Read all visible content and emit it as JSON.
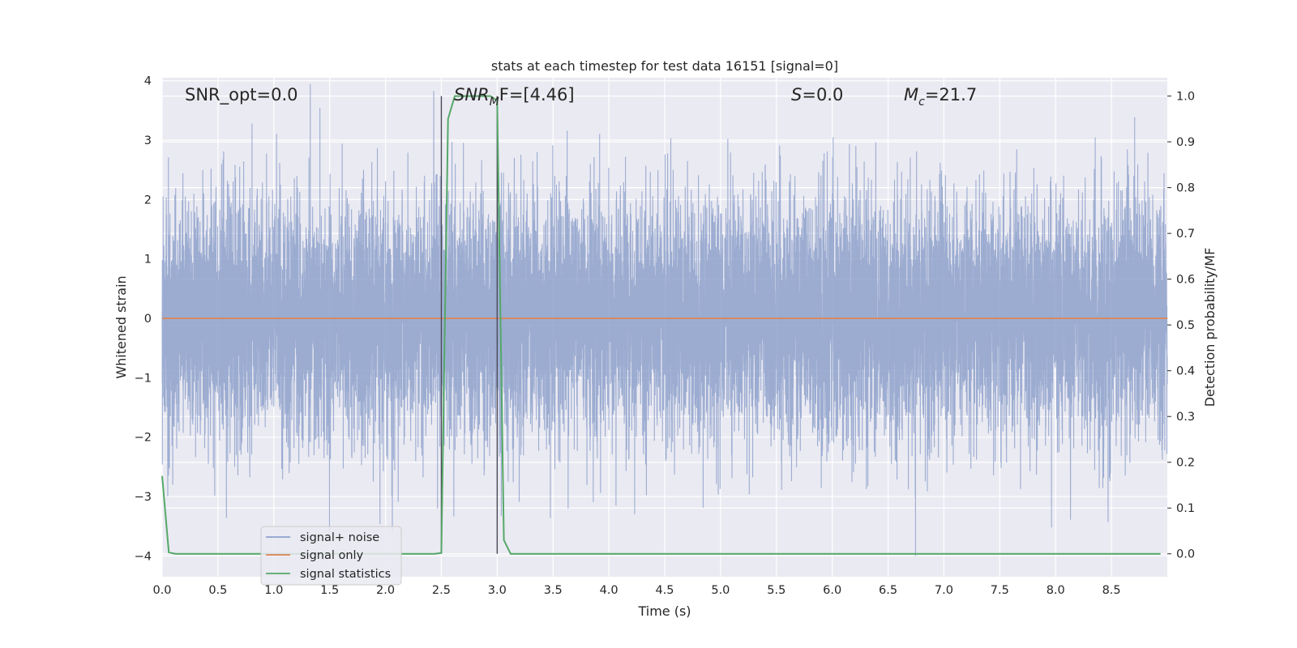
{
  "chart_data": {
    "type": "line",
    "title": "stats at each timestep for test data 16151 [signal=0]",
    "xlabel": "Time (s)",
    "ylabel_left": "Whitened strain",
    "ylabel_right": "Detection probability/MF",
    "xlim": [
      0,
      9.0
    ],
    "ylim_left": [
      -4.35,
      4.05
    ],
    "ylim_right": [
      -0.05,
      1.04
    ],
    "x_ticks": [
      "0.0",
      "0.5",
      "1.0",
      "1.5",
      "2.0",
      "2.5",
      "3.0",
      "3.5",
      "4.0",
      "4.5",
      "5.0",
      "5.5",
      "6.0",
      "6.5",
      "7.0",
      "7.5",
      "8.0",
      "8.5"
    ],
    "y_ticks_left": [
      "4",
      "3",
      "2",
      "1",
      "0",
      "−1",
      "−2",
      "−3",
      "−4"
    ],
    "y_ticks_right": [
      "1.0",
      "0.9",
      "0.8",
      "0.7",
      "0.6",
      "0.5",
      "0.4",
      "0.3",
      "0.2",
      "0.1",
      "0.0"
    ],
    "grid": true,
    "legend_position": "lower-left",
    "annotations": {
      "snr_opt": "SNR_opt=0.0",
      "snr_mf_sym": "SNR",
      "snr_mf_sub": "M",
      "snr_mf_rest": "F=[4.46]",
      "s_sym": "S",
      "s_rest": "=0.0",
      "mc_sym": "M",
      "mc_sub": "c",
      "mc_rest": "=21.7"
    },
    "vertical_lines": [
      2.5,
      3.0
    ],
    "series": [
      {
        "name": "signal+ noise",
        "color": "#8ea1cb",
        "axis": "left",
        "kind": "noise",
        "sample_rate": 4096,
        "band_sigma": 1.0,
        "max_abs": 4.0
      },
      {
        "name": "signal only",
        "color": "#dd8452",
        "axis": "left",
        "x": [
          0,
          9.0
        ],
        "y": [
          0,
          0
        ]
      },
      {
        "name": "signal statistics",
        "color": "#55a868",
        "axis": "right",
        "x": [
          0.0,
          0.06,
          0.12,
          0.5,
          1.0,
          1.5,
          2.0,
          2.44,
          2.5,
          2.56,
          2.62,
          2.75,
          2.88,
          2.94,
          3.0,
          3.06,
          3.12,
          3.5,
          4.0,
          5.0,
          6.0,
          7.0,
          8.0,
          8.94
        ],
        "y": [
          0.17,
          0.003,
          0.0,
          0.0,
          0.0,
          0.0,
          0.0,
          0.0,
          0.002,
          0.95,
          1.0,
          1.0,
          1.0,
          1.0,
          0.99,
          0.03,
          0.0,
          0.0,
          0.0,
          0.0,
          0.0,
          0.0,
          0.0,
          0.0
        ]
      }
    ]
  }
}
